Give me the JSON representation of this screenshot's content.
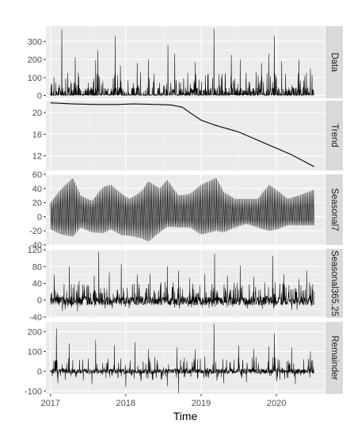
{
  "chart_data": {
    "type": "line",
    "xlabel": "Time",
    "x_ticks": [
      "2017",
      "2018",
      "2019",
      "2020"
    ],
    "x_tick_values": [
      2017,
      2018,
      2019,
      2020
    ],
    "xlim": [
      2016.94,
      2020.64
    ],
    "data_range": [
      2017.0,
      2020.5
    ],
    "panels": [
      {
        "strip": "Data",
        "ylim": [
          -15,
          385
        ],
        "yticks": [
          0,
          100,
          200,
          300
        ],
        "spikes": [
          [
            2017.15,
            365
          ],
          [
            2017.33,
            210
          ],
          [
            2017.6,
            195
          ],
          [
            2017.63,
            250
          ],
          [
            2017.86,
            330
          ],
          [
            2017.93,
            165
          ],
          [
            2018.15,
            180
          ],
          [
            2018.3,
            200
          ],
          [
            2018.56,
            280
          ],
          [
            2018.65,
            230
          ],
          [
            2018.92,
            185
          ],
          [
            2019.17,
            370
          ],
          [
            2019.4,
            225
          ],
          [
            2019.52,
            200
          ],
          [
            2019.8,
            180
          ],
          [
            2019.9,
            230
          ],
          [
            2019.97,
            330
          ],
          [
            2020.07,
            190
          ],
          [
            2020.3,
            200
          ],
          [
            2020.45,
            150
          ]
        ]
      },
      {
        "strip": "Trend",
        "ylim": [
          9.3,
          22.2
        ],
        "yticks": [
          12,
          16,
          20
        ],
        "x": [
          2017.0,
          2017.3,
          2017.6,
          2017.9,
          2018.1,
          2018.4,
          2018.6,
          2018.75,
          2018.85,
          2019.0,
          2019.2,
          2019.5,
          2019.8,
          2020.0,
          2020.2,
          2020.5
        ],
        "y": [
          21.8,
          21.6,
          21.5,
          21.5,
          21.6,
          21.5,
          21.4,
          21.0,
          20.0,
          18.6,
          17.6,
          16.4,
          14.6,
          13.4,
          12.2,
          10.0
        ]
      },
      {
        "strip": "Seasonal7",
        "ylim": [
          -40,
          60
        ],
        "yticks": [
          -40,
          -20,
          0,
          20,
          40,
          60
        ],
        "x": [
          2017.0,
          2017.15,
          2017.3,
          2017.4,
          2017.55,
          2017.7,
          2017.8,
          2017.95,
          2018.05,
          2018.2,
          2018.3,
          2018.45,
          2018.55,
          2018.7,
          2018.85,
          2019.0,
          2019.2,
          2019.3,
          2019.45,
          2019.6,
          2019.75,
          2019.9,
          2020.0,
          2020.15,
          2020.3,
          2020.5
        ],
        "upper": [
          20,
          40,
          55,
          30,
          22,
          42,
          45,
          32,
          25,
          35,
          50,
          40,
          52,
          30,
          32,
          45,
          55,
          35,
          25,
          25,
          25,
          45,
          38,
          25,
          30,
          38
        ],
        "lower": [
          -18,
          -25,
          -28,
          -15,
          -22,
          -23,
          -18,
          -26,
          -27,
          -30,
          -35,
          -22,
          -14,
          -15,
          -15,
          -25,
          -20,
          -22,
          -15,
          -10,
          -15,
          -20,
          -18,
          -12,
          -12,
          -12
        ]
      },
      {
        "strip": "Seasonal365.25",
        "ylim": [
          -42,
          122
        ],
        "yticks": [
          -40,
          0,
          40,
          80,
          120
        ],
        "spikes": [
          [
            2017.05,
            60
          ],
          [
            2017.25,
            80
          ],
          [
            2017.38,
            45
          ],
          [
            2017.58,
            58
          ],
          [
            2017.64,
            115
          ],
          [
            2017.78,
            65
          ],
          [
            2017.94,
            85
          ],
          [
            2018.15,
            60
          ],
          [
            2018.32,
            62
          ],
          [
            2018.55,
            80
          ],
          [
            2018.7,
            70
          ],
          [
            2018.85,
            52
          ],
          [
            2019.05,
            62
          ],
          [
            2019.18,
            110
          ],
          [
            2019.35,
            58
          ],
          [
            2019.52,
            82
          ],
          [
            2019.7,
            55
          ],
          [
            2019.95,
            105
          ],
          [
            2020.1,
            62
          ],
          [
            2020.3,
            50
          ],
          [
            2020.4,
            70
          ]
        ]
      },
      {
        "strip": "Remainder",
        "ylim": [
          -115,
          250
        ],
        "yticks": [
          -100,
          0,
          100,
          200
        ],
        "spikes": [
          [
            2017.08,
            215
          ],
          [
            2017.25,
            140
          ],
          [
            2017.6,
            155
          ],
          [
            2017.85,
            130
          ],
          [
            2018.12,
            145
          ],
          [
            2018.3,
            110
          ],
          [
            2018.55,
            200
          ],
          [
            2018.68,
            120
          ],
          [
            2018.92,
            110
          ],
          [
            2019.17,
            240
          ],
          [
            2019.5,
            130
          ],
          [
            2019.7,
            110
          ],
          [
            2019.9,
            125
          ],
          [
            2019.97,
            190
          ],
          [
            2020.2,
            120
          ],
          [
            2020.45,
            100
          ]
        ],
        "dips": [
          [
            2017.1,
            -60
          ],
          [
            2017.55,
            -65
          ],
          [
            2018.0,
            -80
          ],
          [
            2018.2,
            -50
          ],
          [
            2018.55,
            -75
          ],
          [
            2018.7,
            -110
          ],
          [
            2019.3,
            -60
          ],
          [
            2019.6,
            -55
          ],
          [
            2020.0,
            -50
          ],
          [
            2020.25,
            -65
          ]
        ]
      }
    ]
  }
}
